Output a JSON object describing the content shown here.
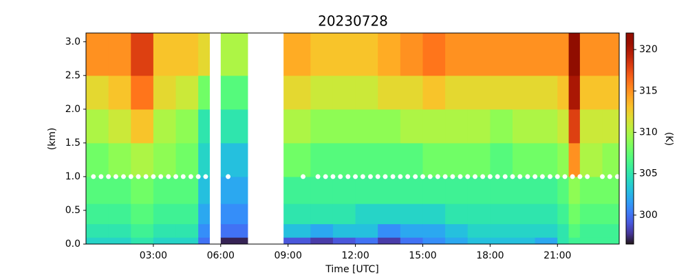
{
  "chart_data": {
    "type": "heatmap",
    "title": "20230728",
    "xlabel": "Time [UTC]",
    "ylabel": "(km)",
    "colorbar_label": "(K)",
    "colormap": "turbo",
    "clim": [
      296.5,
      322
    ],
    "x_bins": [
      0,
      1,
      2,
      3,
      4,
      5,
      5.5,
      6,
      7.2,
      8.8,
      10,
      11,
      12,
      13,
      14,
      15,
      16,
      17,
      18,
      19,
      20,
      21,
      21.5,
      22,
      23,
      23.75
    ],
    "y_bins": [
      0,
      0.1,
      0.3,
      0.6,
      1.0,
      1.5,
      2.0,
      2.5,
      3.13
    ],
    "values": [
      [
        304,
        305,
        306,
        307,
        308,
        310,
        312,
        315
      ],
      [
        304,
        305,
        306,
        307,
        309,
        311,
        313,
        315
      ],
      [
        305,
        306,
        307,
        308,
        310,
        313,
        316,
        318
      ],
      [
        304,
        305,
        306,
        307,
        309,
        310,
        312,
        313
      ],
      [
        304,
        305,
        306,
        307,
        308,
        309,
        311,
        313
      ],
      [
        300,
        301,
        302,
        303,
        304,
        305,
        308,
        312
      ],
      [
        null,
        null,
        null,
        null,
        null,
        null,
        null,
        null
      ],
      [
        297,
        300,
        301,
        302,
        303,
        305,
        307,
        310
      ],
      [
        null,
        null,
        null,
        null,
        null,
        null,
        null,
        null
      ],
      [
        299,
        303,
        305,
        306,
        308,
        310,
        312,
        314
      ],
      [
        298,
        302,
        305,
        306,
        307,
        309,
        311,
        313
      ],
      [
        299,
        303,
        305,
        306,
        307,
        309,
        311,
        313
      ],
      [
        300,
        303,
        304,
        306,
        307,
        309,
        311,
        313
      ],
      [
        298,
        301,
        304,
        306,
        307,
        309,
        312,
        314
      ],
      [
        300,
        302,
        304,
        306,
        307,
        310,
        312,
        315
      ],
      [
        301,
        302,
        304,
        306,
        308,
        310,
        313,
        316
      ],
      [
        302,
        303,
        305,
        306,
        308,
        310,
        312,
        315
      ],
      [
        303,
        304,
        305,
        306,
        308,
        310,
        312,
        315
      ],
      [
        303,
        304,
        305,
        306,
        307,
        309,
        312,
        315
      ],
      [
        303,
        304,
        305,
        306,
        308,
        310,
        312,
        315
      ],
      [
        302,
        304,
        305,
        306,
        308,
        310,
        312,
        315
      ],
      [
        305,
        305,
        306,
        307,
        309,
        311,
        313,
        315
      ],
      [
        306,
        307,
        308,
        309,
        315,
        318,
        320,
        322
      ],
      [
        306,
        306,
        307,
        308,
        310,
        311,
        313,
        315
      ],
      [
        306,
        306,
        307,
        308,
        309,
        311,
        313,
        315
      ]
    ],
    "markers": {
      "color": "#ffffff",
      "y": 1.0,
      "x": [
        0.33,
        0.67,
        1.0,
        1.33,
        1.67,
        2.0,
        2.33,
        2.67,
        3.0,
        3.33,
        3.67,
        4.0,
        4.33,
        4.67,
        5.0,
        5.33,
        6.33,
        9.67,
        10.33,
        10.67,
        11.0,
        11.33,
        11.67,
        12.0,
        12.33,
        12.67,
        13.0,
        13.33,
        13.67,
        14.0,
        14.33,
        14.67,
        15.0,
        15.33,
        15.67,
        16.0,
        16.33,
        16.67,
        17.0,
        17.33,
        17.67,
        18.0,
        18.33,
        18.67,
        19.0,
        19.33,
        19.67,
        20.0,
        20.33,
        20.67,
        21.0,
        21.33,
        21.67,
        22.0,
        22.33,
        23.0,
        23.33,
        23.67
      ]
    },
    "xlim": [
      0,
      23.75
    ],
    "ylim": [
      0,
      3.13
    ],
    "xticks": [
      {
        "value": 3,
        "label": "03:00"
      },
      {
        "value": 6,
        "label": "06:00"
      },
      {
        "value": 9,
        "label": "09:00"
      },
      {
        "value": 12,
        "label": "12:00"
      },
      {
        "value": 15,
        "label": "15:00"
      },
      {
        "value": 18,
        "label": "18:00"
      },
      {
        "value": 21,
        "label": "21:00"
      }
    ],
    "yticks": [
      {
        "value": 0,
        "label": "0.0"
      },
      0.5,
      {
        "value": 1,
        "label": "1.0"
      },
      1.5,
      {
        "value": 2,
        "label": "2.0"
      },
      2.5,
      {
        "value": 3,
        "label": "3.0"
      }
    ],
    "cticks": [
      300,
      305,
      310,
      315,
      320
    ]
  }
}
